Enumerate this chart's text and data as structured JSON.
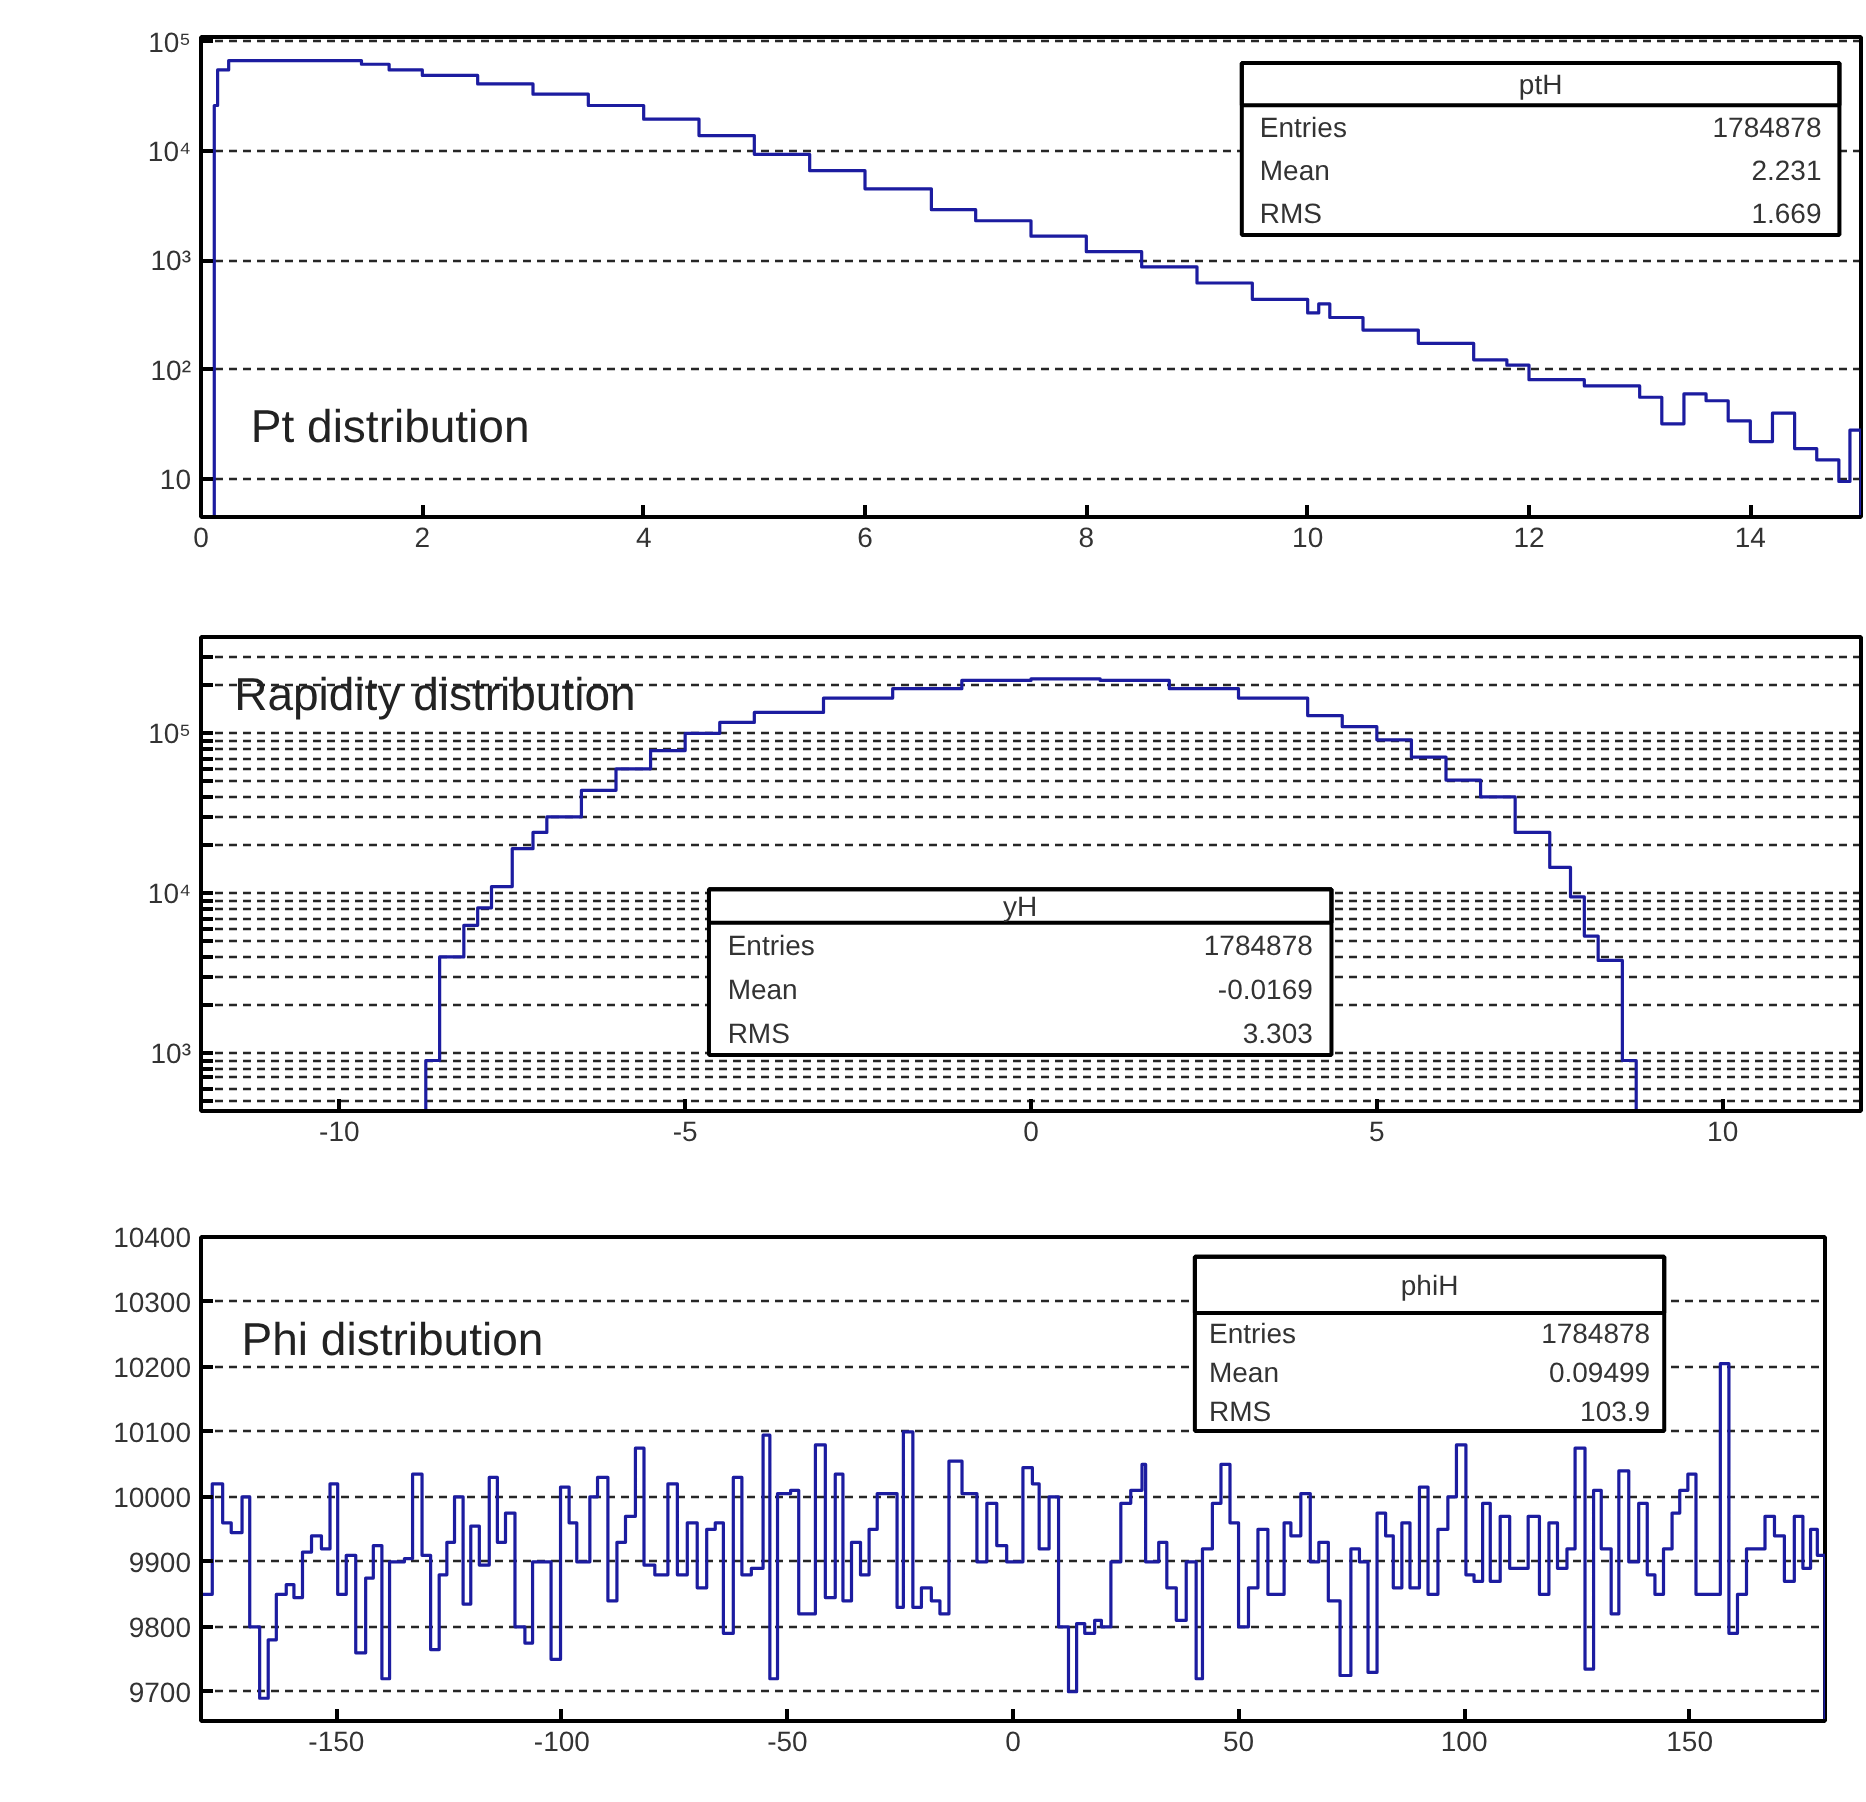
{
  "chart_data": [
    {
      "type": "histogram",
      "title": "Pt distribution",
      "color": "#1c1ca0",
      "log": true,
      "grid": "y",
      "bins": [
        0.12,
        0.15,
        0.25,
        1.45,
        1.7,
        2.0,
        2.5,
        3.0,
        3.5,
        4.0,
        4.5,
        5.0,
        5.5,
        6.0,
        6.6,
        7.0,
        7.5,
        8.0,
        8.5,
        9.0,
        9.5,
        10.0,
        10.1,
        10.2,
        10.5,
        11.0,
        11.5,
        11.8,
        12.0,
        12.5,
        13.0,
        13.2,
        13.4,
        13.6,
        13.8,
        14.0,
        14.2,
        14.4,
        14.6,
        14.8,
        14.9,
        15.0
      ],
      "values": [
        26000,
        55000,
        67000,
        62000,
        55000,
        49000,
        41000,
        33000,
        26000,
        19500,
        13800,
        9300,
        6600,
        4500,
        2900,
        2300,
        1660,
        1200,
        870,
        620,
        440,
        330,
        400,
        300,
        230,
        174,
        123,
        110,
        81,
        71,
        56,
        32,
        60,
        52,
        34,
        22,
        40,
        19,
        15,
        9.5,
        28
      ],
      "xlim": [
        0,
        15
      ],
      "ylim": [
        4.5,
        110000
      ],
      "xticks": [
        0,
        2,
        4,
        6,
        8,
        10,
        12,
        14
      ],
      "yticks": [
        10,
        {
          "value": 100,
          "label": "10²"
        },
        {
          "value": 1000,
          "label": "10³"
        },
        {
          "value": 10000,
          "label": "10⁴"
        },
        {
          "value": 100000,
          "label": "10⁵"
        }
      ],
      "annotations": [
        "ptH",
        "Entries",
        "1784878",
        "Mean",
        "2.231",
        "RMS",
        "1.669"
      ]
    },
    {
      "type": "histogram",
      "title": "Rapidity distribution",
      "color": "#1c1ca0",
      "log": true,
      "grid": "y",
      "bins": [
        -8.75,
        -8.55,
        -8.2,
        -8.0,
        -7.8,
        -7.5,
        -7.2,
        -7.0,
        -6.5,
        -6.0,
        -5.5,
        -5.0,
        -4.5,
        -4.0,
        -3.0,
        -2.0,
        -1.0,
        0,
        1,
        2,
        3,
        4,
        4.5,
        5,
        5.5,
        6,
        6.5,
        7,
        7.5,
        7.8,
        8.0,
        8.2,
        8.55,
        8.75
      ],
      "values": [
        900,
        4000,
        6300,
        8100,
        11000,
        19000,
        24000,
        30000,
        44000,
        60000,
        78000,
        100000,
        117000,
        135000,
        166000,
        190000,
        214000,
        219000,
        214000,
        190000,
        166000,
        129000,
        110000,
        91000,
        71000,
        51000,
        40000,
        24000,
        14500,
        9500,
        5400,
        3800,
        900
      ],
      "xlim": [
        -12,
        12
      ],
      "ylim": [
        435,
        400000
      ],
      "xticks": [
        -10,
        -5,
        0,
        5,
        10
      ],
      "yticks": [
        {
          "value": 500,
          "label": null
        },
        {
          "value": 600,
          "label": null
        },
        {
          "value": 700,
          "label": null
        },
        {
          "value": 800,
          "label": null
        },
        {
          "value": 900,
          "label": null
        },
        {
          "value": 1000,
          "label": "10³"
        },
        {
          "value": 2000,
          "label": null
        },
        {
          "value": 3000,
          "label": null
        },
        {
          "value": 4000,
          "label": null
        },
        {
          "value": 5000,
          "label": null
        },
        {
          "value": 6000,
          "label": null
        },
        {
          "value": 7000,
          "label": null
        },
        {
          "value": 8000,
          "label": null
        },
        {
          "value": 9000,
          "label": null
        },
        {
          "value": 10000,
          "label": "10⁴"
        },
        {
          "value": 20000,
          "label": null
        },
        {
          "value": 30000,
          "label": null
        },
        {
          "value": 40000,
          "label": null
        },
        {
          "value": 50000,
          "label": null
        },
        {
          "value": 60000,
          "label": null
        },
        {
          "value": 70000,
          "label": null
        },
        {
          "value": 80000,
          "label": null
        },
        {
          "value": 90000,
          "label": null
        },
        {
          "value": 100000,
          "label": "10⁵"
        },
        {
          "value": 200000,
          "label": null
        },
        {
          "value": 300000,
          "label": null
        }
      ],
      "annotations": [
        "yH",
        "Entries",
        "1784878",
        "Mean",
        "-0.0169",
        "RMS",
        "3.303"
      ]
    },
    {
      "type": "histogram",
      "title": "Phi distribution",
      "color": "#1c1ca0",
      "grid": "y",
      "bins": [
        -180,
        -177.5,
        -175.2,
        -173.3,
        -170.9,
        -169.2,
        -167,
        -165.1,
        -163.3,
        -161.1,
        -159.4,
        -157.5,
        -155.5,
        -153.3,
        -151.4,
        -149.7,
        -147.8,
        -145.7,
        -143.5,
        -141.8,
        -139.9,
        -138.2,
        -134.9,
        -133.1,
        -131,
        -129.1,
        -127.2,
        -125.5,
        -123.8,
        -121.9,
        -120.2,
        -118.3,
        -116.1,
        -114.3,
        -112.5,
        -110.4,
        -108.2,
        -106.5,
        -102.4,
        -100.3,
        -98.4,
        -96.7,
        -93.8,
        -92.1,
        -89.8,
        -87.8,
        -85.9,
        -83.7,
        -81.8,
        -79.4,
        -76.5,
        -74.4,
        -72.2,
        -70,
        -67.9,
        -66,
        -64.2,
        -62,
        -60.1,
        -58,
        -55.4,
        -53.9,
        -52.2,
        -49.3,
        -47.5,
        -43.8,
        -41.6,
        -39.4,
        -37.7,
        -35.8,
        -33.8,
        -31.9,
        -30.1,
        -25.7,
        -24.3,
        -22.2,
        -20.3,
        -18.1,
        -16.2,
        -14.2,
        -11.3,
        -8,
        -5.8,
        -3.6,
        -1.4,
        2.2,
        4.3,
        5.8,
        8,
        10.1,
        12.3,
        14.1,
        15.9,
        18.1,
        19.6,
        21.7,
        23.9,
        26.1,
        28.6,
        29.4,
        32.3,
        34.1,
        36.2,
        38.4,
        40.6,
        42,
        44.2,
        46.1,
        48.1,
        50,
        52.2,
        54.3,
        56.5,
        60.1,
        61.6,
        63.8,
        65.9,
        67.8,
        69.9,
        72.5,
        74.9,
        76.8,
        78.7,
        80.7,
        82.6,
        84.3,
        86.2,
        88,
        90.1,
        92,
        94.2,
        96.4,
        98.3,
        100.4,
        102.2,
        104.1,
        105.8,
        108,
        110.1,
        114.2,
        116.7,
        118.8,
        120.7,
        122.8,
        124.6,
        126.8,
        128.7,
        130.4,
        132.6,
        134.3,
        136.5,
        138.7,
        140.6,
        142.3,
        144.2,
        146.1,
        147.8,
        149.6,
        151.4,
        156.8,
        158.7,
        160.6,
        162.6,
        166.7,
        168.8,
        171,
        173.2,
        175.1,
        176.8,
        178.3,
        180
      ],
      "values": [
        9850,
        10020,
        9960,
        9945,
        10000,
        9800,
        9690,
        9780,
        9850,
        9865,
        9845,
        9915,
        9940,
        9920,
        10020,
        9850,
        9910,
        9760,
        9875,
        9925,
        9720,
        9900,
        9905,
        10035,
        9910,
        9765,
        9880,
        9930,
        10000,
        9835,
        9955,
        9895,
        10030,
        9930,
        9975,
        9800,
        9775,
        9900,
        9750,
        10015,
        9960,
        9900,
        10000,
        10030,
        9840,
        9930,
        9970,
        10075,
        9895,
        9880,
        10020,
        9880,
        9960,
        9860,
        9950,
        9960,
        9790,
        10030,
        9880,
        9890,
        10095,
        9720,
        10005,
        10010,
        9820,
        10080,
        9845,
        10035,
        9840,
        9930,
        9880,
        9950,
        10005,
        9830,
        10100,
        9830,
        9860,
        9840,
        9820,
        10055,
        10005,
        9900,
        9990,
        9925,
        9900,
        10045,
        10020,
        9920,
        10000,
        9800,
        9700,
        9805,
        9790,
        9810,
        9800,
        9900,
        9990,
        10010,
        10050,
        9900,
        9930,
        9860,
        9810,
        9900,
        9720,
        9920,
        9990,
        10050,
        9960,
        9800,
        9860,
        9950,
        9850,
        9960,
        9940,
        10005,
        9900,
        9930,
        9840,
        9725,
        9920,
        9900,
        9730,
        9975,
        9940,
        9860,
        9960,
        9860,
        10015,
        9850,
        9950,
        10000,
        10080,
        9880,
        9870,
        9990,
        9870,
        9970,
        9890,
        9970,
        9850,
        9960,
        9890,
        9920,
        10075,
        9735,
        10010,
        9920,
        9820,
        10040,
        9900,
        9990,
        9880,
        9850,
        9920,
        9975,
        10010,
        10035,
        9850,
        10205,
        9790,
        9850,
        9920,
        9970,
        9940,
        9870,
        9970,
        9890,
        9950,
        9910
      ],
      "xlim": [
        -180,
        180
      ],
      "ylim": [
        9655,
        10400
      ],
      "xticks": [
        -150,
        -100,
        -50,
        0,
        50,
        100,
        150
      ],
      "yticks": [
        9700,
        9800,
        9900,
        10000,
        10100,
        10200,
        10300,
        10400
      ],
      "annotations": [
        "phiH",
        "Entries",
        "1784878",
        "Mean",
        "0.09499",
        "RMS",
        "103.9"
      ]
    }
  ]
}
